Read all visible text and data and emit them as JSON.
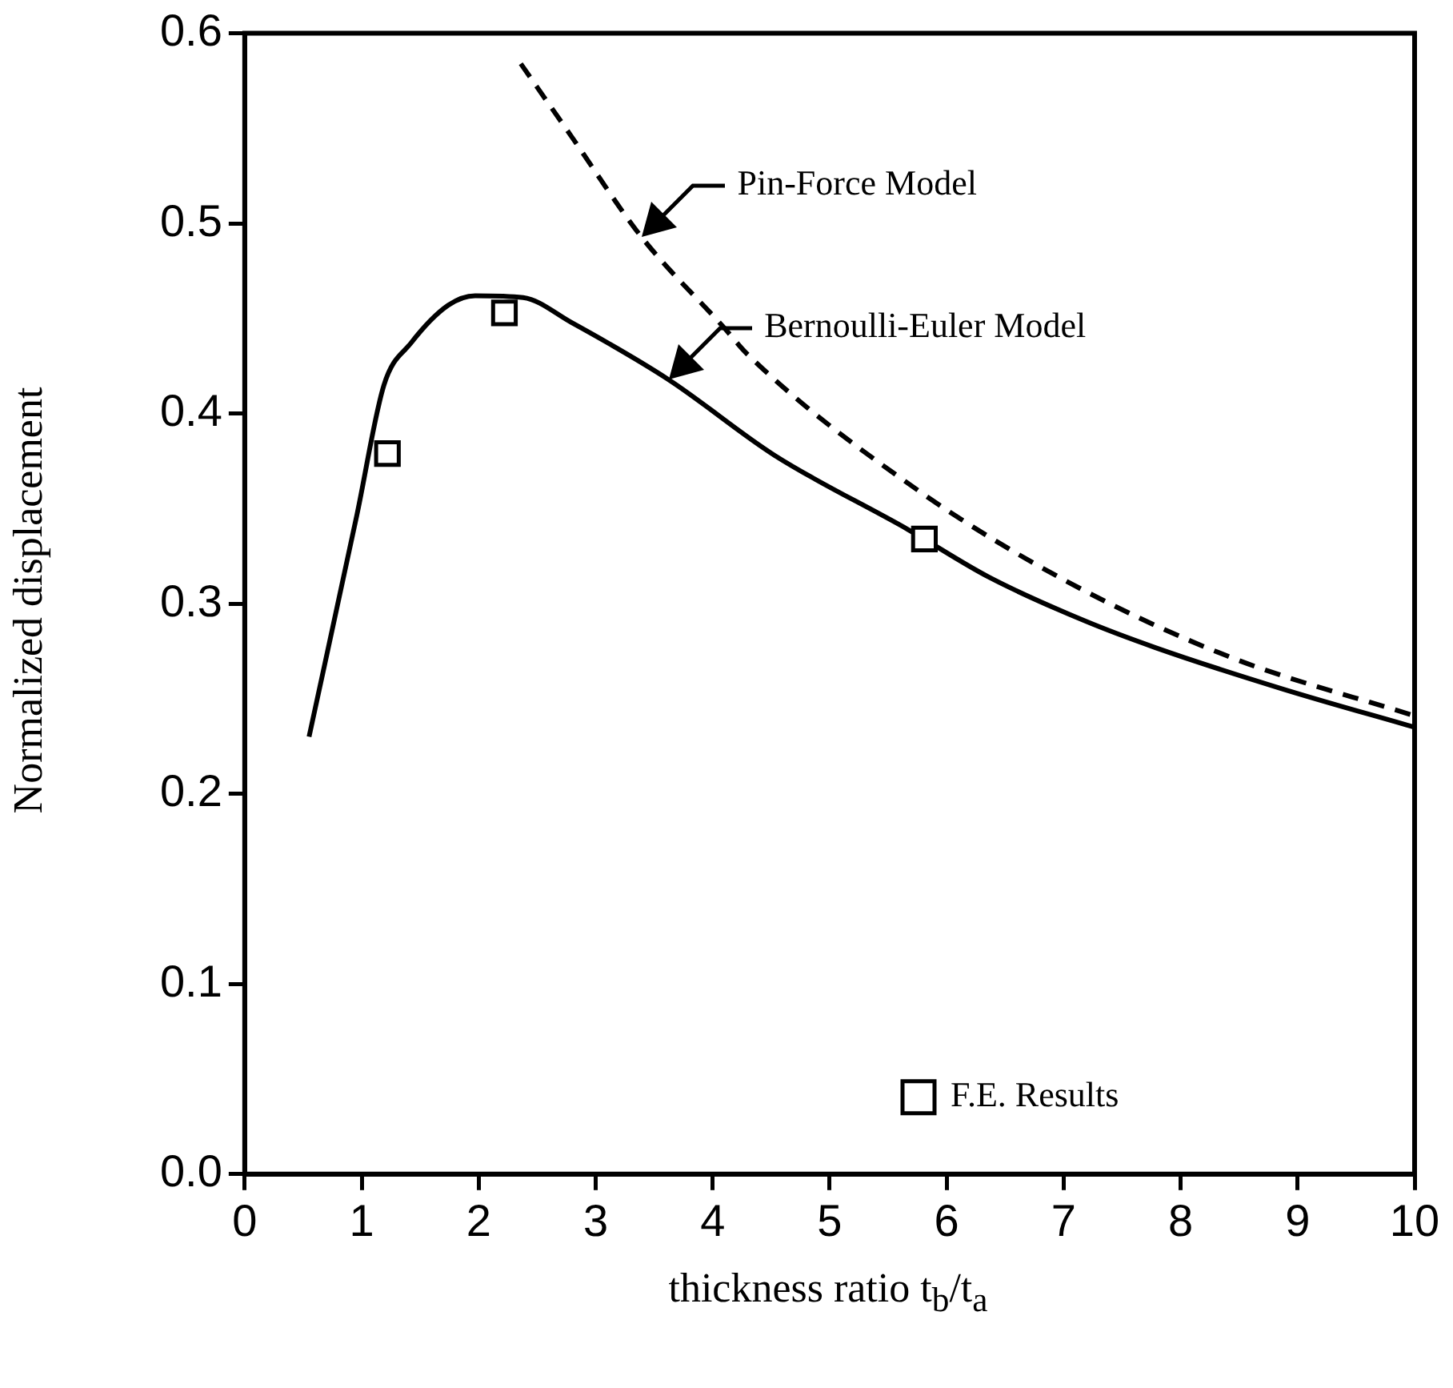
{
  "chart_data": {
    "type": "line",
    "xlabel": "thickness ratio t$_{b}$/t$_{a}$",
    "ylabel": "Normalized displacement",
    "xlim": [
      0,
      10
    ],
    "ylim": [
      0,
      0.6
    ],
    "xticks": [
      0,
      1,
      2,
      3,
      4,
      5,
      6,
      7,
      8,
      9,
      10
    ],
    "yticks": [
      {
        "value": 0,
        "label": "0.0"
      },
      0.1,
      0.2,
      0.3,
      0.4,
      0.5,
      0.6
    ],
    "grid": false,
    "legend": "bottom right",
    "series": [
      {
        "color": "#000000",
        "line_style": "solid",
        "marker": "none",
        "x": [
          0.55,
          0.96,
          1.19,
          1.42,
          1.74,
          1.97,
          2.38,
          2.79,
          3.62,
          4.53,
          5.67,
          6.36,
          7.18,
          7.78,
          8.88,
          10
        ],
        "values": [
          0.23,
          0.347,
          0.415,
          0.437,
          0.457,
          0.462,
          0.461,
          0.448,
          0.418,
          0.378,
          0.339,
          0.314,
          0.291,
          0.277,
          0.255,
          0.235
        ]
      },
      {
        "color": "#000000",
        "line_style": "dashed",
        "marker": "none",
        "x": [
          2.36,
          2.79,
          3.39,
          4.1,
          4.3,
          5.77,
          7.05,
          8.42,
          10
        ],
        "values": [
          0.584,
          0.546,
          0.493,
          0.445,
          0.431,
          0.359,
          0.311,
          0.272,
          0.241
        ]
      },
      {
        "type": "scatter",
        "name": "F.E. Results",
        "color": "#000000",
        "marker": "square",
        "x": [
          1.22,
          2.22,
          5.81
        ],
        "values": [
          0.379,
          0.453,
          0.334
        ]
      }
    ],
    "annotations": [
      {
        "text": "Pin-Force Model",
        "x": 3.39,
        "y": 0.493
      },
      {
        "text": "Bernoulli-Euler Model",
        "x": 3.62,
        "y": 0.418
      }
    ]
  }
}
